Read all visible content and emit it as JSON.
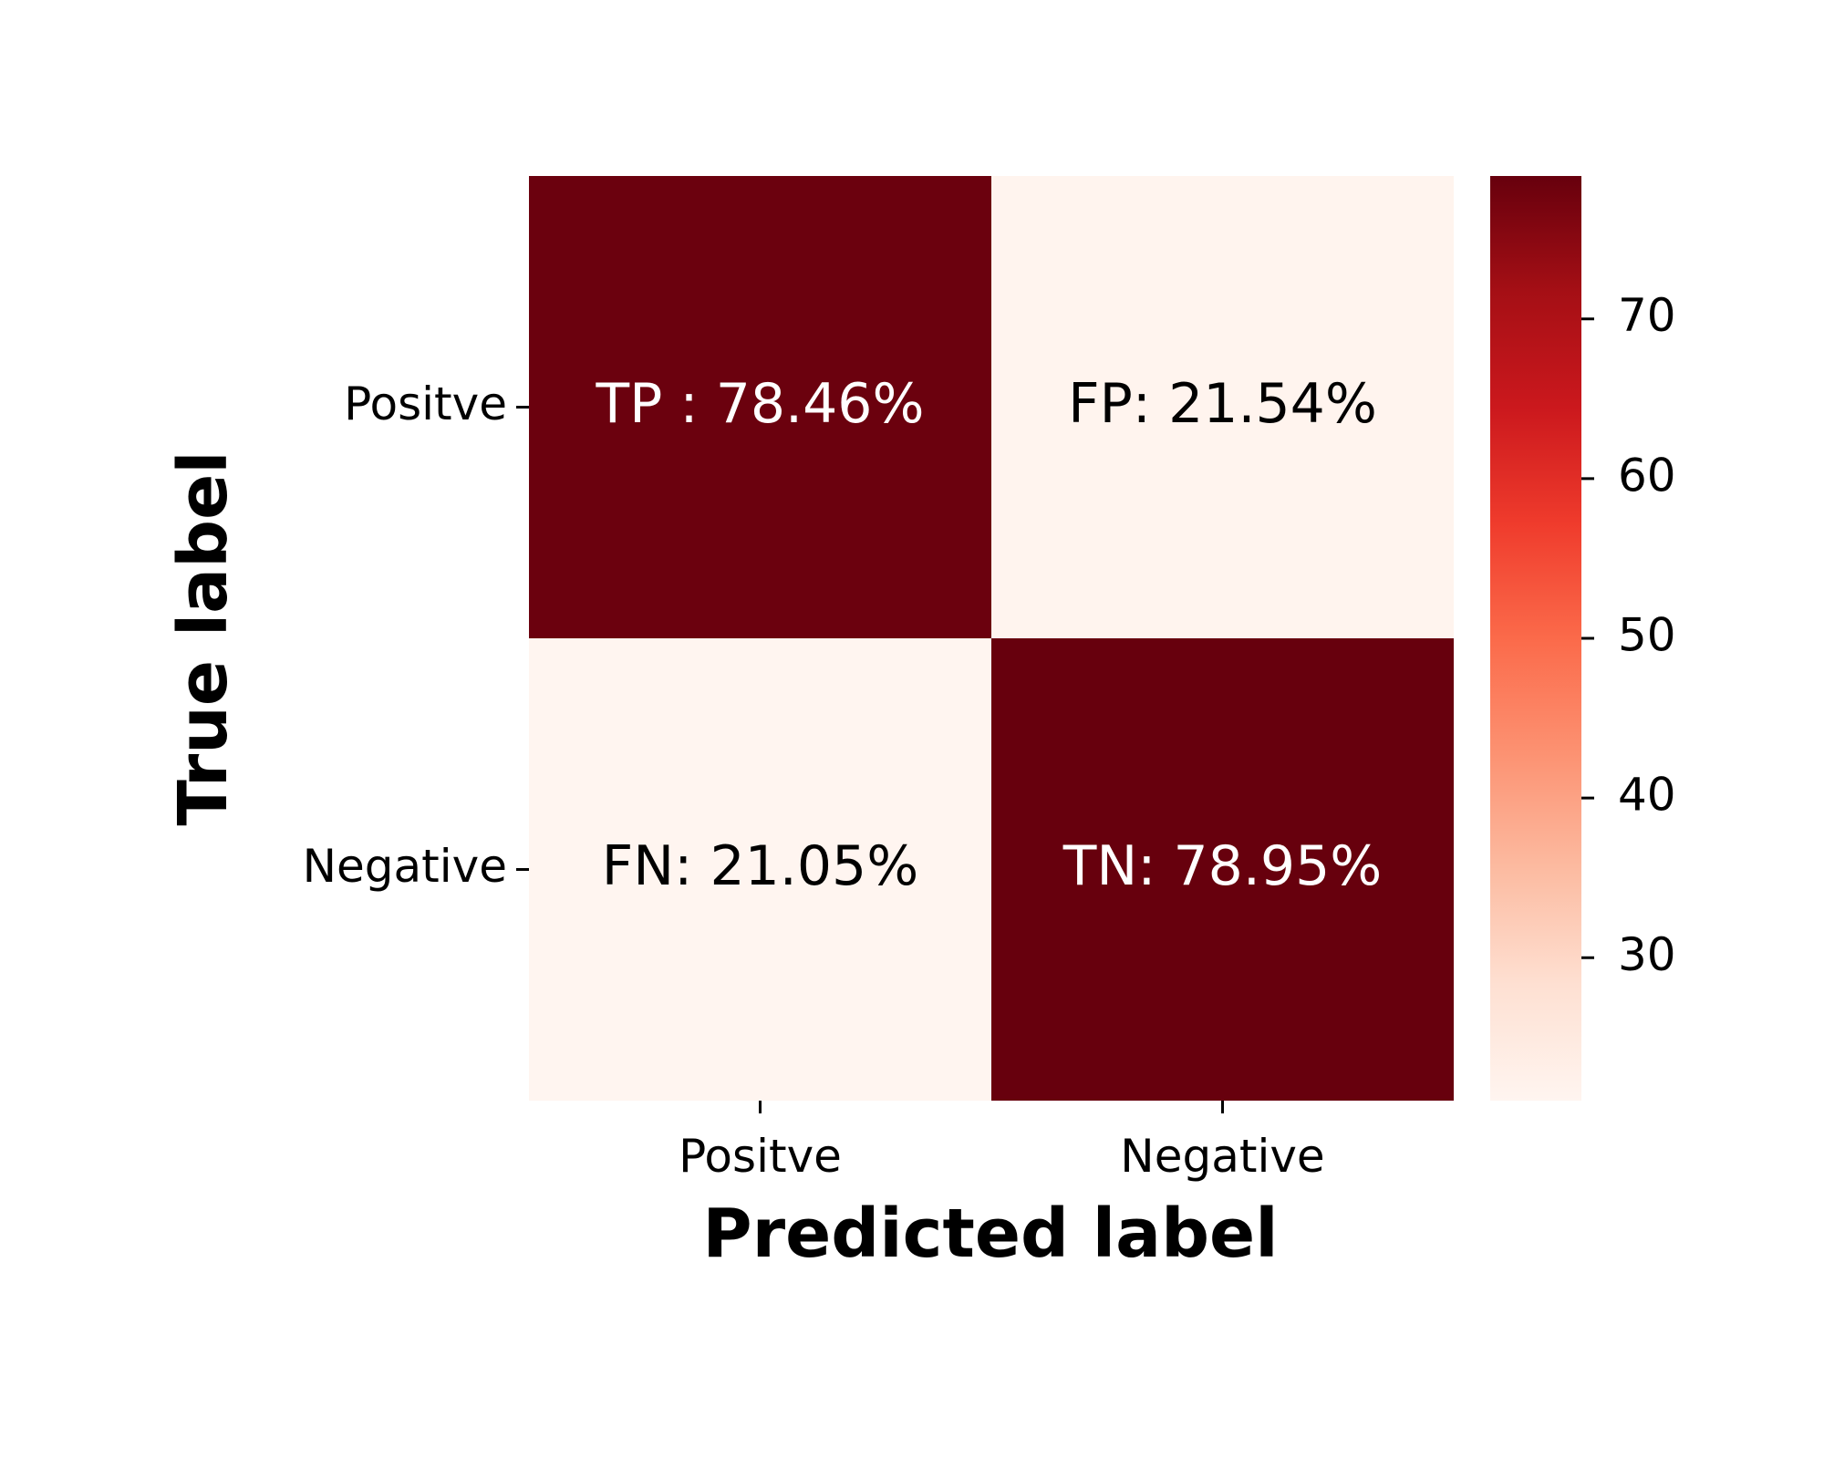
{
  "chart_data": {
    "type": "heatmap",
    "row_categories": [
      "Positve",
      "Negative"
    ],
    "col_categories": [
      "Positve",
      "Negative"
    ],
    "values": [
      [
        78.46,
        21.54
      ],
      [
        21.05,
        78.95
      ]
    ],
    "cell_labels": [
      [
        "TP : 78.46%",
        "FP: 21.54%"
      ],
      [
        "FN: 21.05%",
        "TN: 78.95%"
      ]
    ],
    "xlabel": "Predicted label",
    "ylabel": "True label",
    "colorbar": {
      "range": [
        21.05,
        78.95
      ],
      "ticks": [
        30,
        40,
        50,
        60,
        70
      ],
      "colormap": "Reds",
      "color_low": "#fff5f0",
      "color_high": "#67000d"
    }
  }
}
